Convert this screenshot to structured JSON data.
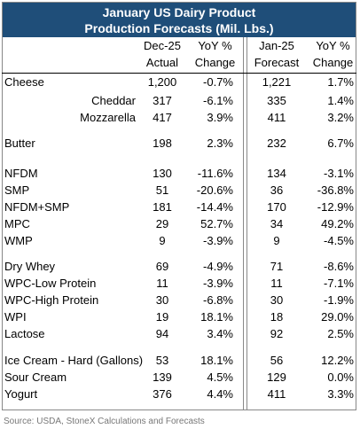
{
  "header": {
    "title": [
      "January US Dairy Product",
      "Production Forecasts (Mil. Lbs.)"
    ]
  },
  "table": {
    "columns": [
      [
        "Dec-25",
        "Actual"
      ],
      [
        "YoY %",
        "Change"
      ],
      [
        "Jan-25",
        "Forecast"
      ],
      [
        "YoY %",
        "Change"
      ]
    ],
    "rows": [
      [
        "Cheese",
        "1,200",
        "-0.7%",
        "1,221",
        "1.7%"
      ],
      [
        "Cheddar",
        "317",
        "-6.1%",
        "335",
        "1.4%"
      ],
      [
        "Mozzarella",
        "417",
        "3.9%",
        "411",
        "3.2%"
      ],
      [
        "Butter",
        "198",
        "2.3%",
        "232",
        "6.7%"
      ],
      [
        "NFDM",
        "130",
        "-11.6%",
        "134",
        "-3.1%"
      ],
      [
        "SMP",
        "51",
        "-20.6%",
        "36",
        "-36.8%"
      ],
      [
        "NFDM+SMP",
        "181",
        "-14.4%",
        "170",
        "-12.9%"
      ],
      [
        "MPC",
        "29",
        "52.7%",
        "34",
        "49.2%"
      ],
      [
        "WMP",
        "9",
        "-3.9%",
        "9",
        "-4.5%"
      ],
      [
        "Dry Whey",
        "69",
        "-4.9%",
        "71",
        "-8.6%"
      ],
      [
        "WPC-Low Protein",
        "11",
        "-3.9%",
        "11",
        "-7.1%"
      ],
      [
        "WPC-High Protein",
        "30",
        "-6.8%",
        "30",
        "-1.9%"
      ],
      [
        "WPI",
        "19",
        "18.1%",
        "18",
        "29.0%"
      ],
      [
        "Lactose",
        "94",
        "3.4%",
        "92",
        "2.5%"
      ],
      [
        "Ice Cream - Hard (Gallons)",
        "53",
        "18.1%",
        "56",
        "12.2%"
      ],
      [
        "Sour Cream",
        "139",
        "4.5%",
        "129",
        "0.0%"
      ],
      [
        "Yogurt",
        "376",
        "4.4%",
        "411",
        "3.3%"
      ]
    ]
  },
  "source": "Source: USDA, StoneX Calculations and Forecasts"
}
